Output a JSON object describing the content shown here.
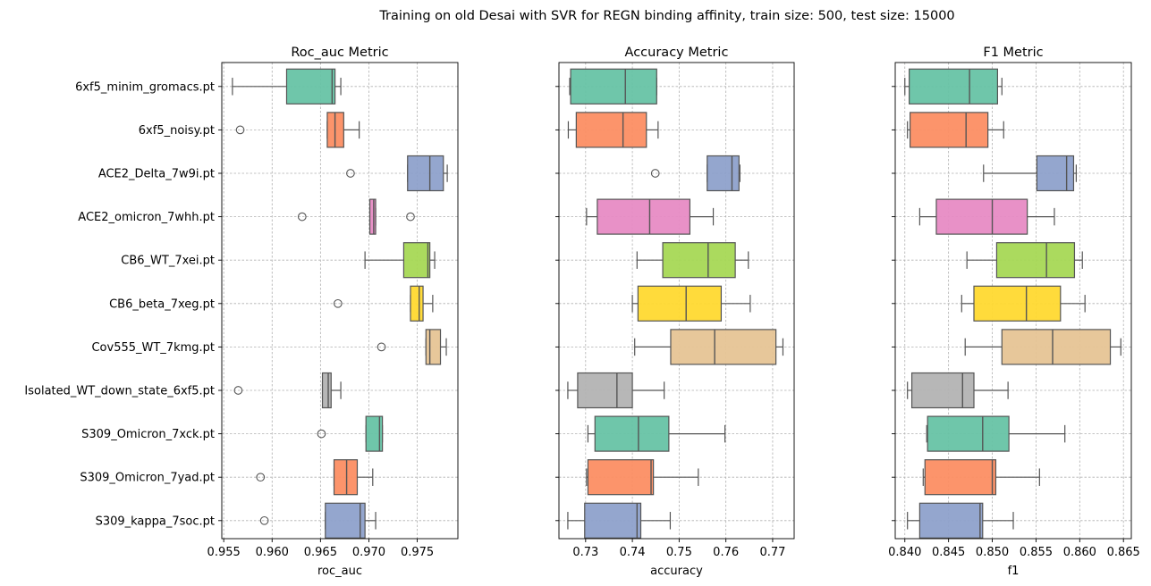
{
  "suptitle": "Training on old Desai with SVR for REGN binding affinity, train size: 500, test size: 15000",
  "chart_data": [
    {
      "type": "box",
      "title": "Roc_auc Metric",
      "xlabel": "roc_auc",
      "xlim": [
        0.9548,
        0.9792
      ],
      "xticks": [
        0.955,
        0.96,
        0.965,
        0.97,
        0.975
      ],
      "xtick_labels": [
        "0.955",
        "0.960",
        "0.965",
        "0.970",
        "0.975"
      ],
      "grid": true,
      "boxes": [
        {
          "label": "6xf5_minim_gromacs.pt",
          "whislo": 0.9559,
          "q1": 0.9615,
          "med": 0.9662,
          "q3": 0.9665,
          "whishi": 0.9671,
          "outliers": []
        },
        {
          "label": "6xf5_noisy.pt",
          "whislo": 0.9657,
          "q1": 0.9657,
          "med": 0.9665,
          "q3": 0.9674,
          "whishi": 0.969,
          "outliers": [
            0.9567
          ]
        },
        {
          "label": "ACE2_Delta_7w9i.pt",
          "whislo": 0.974,
          "q1": 0.974,
          "med": 0.9763,
          "q3": 0.9777,
          "whishi": 0.9781,
          "outliers": [
            0.9681
          ]
        },
        {
          "label": "ACE2_omicron_7whh.pt",
          "whislo": 0.9701,
          "q1": 0.9701,
          "med": 0.9705,
          "q3": 0.9707,
          "whishi": 0.9707,
          "outliers": [
            0.9631,
            0.9743
          ]
        },
        {
          "label": "CB6_WT_7xei.pt",
          "whislo": 0.9696,
          "q1": 0.9736,
          "med": 0.9761,
          "q3": 0.9763,
          "whishi": 0.9768,
          "outliers": []
        },
        {
          "label": "CB6_beta_7xeg.pt",
          "whislo": 0.9743,
          "q1": 0.9743,
          "med": 0.9752,
          "q3": 0.9756,
          "whishi": 0.9766,
          "outliers": [
            0.9668
          ]
        },
        {
          "label": "Cov555_WT_7kmg.pt",
          "whislo": 0.9759,
          "q1": 0.9759,
          "med": 0.9763,
          "q3": 0.9774,
          "whishi": 0.978,
          "outliers": [
            0.9713
          ]
        },
        {
          "label": "Isolated_WT_down_state_6xf5.pt",
          "whislo": 0.9652,
          "q1": 0.9652,
          "med": 0.9658,
          "q3": 0.9661,
          "whishi": 0.9671,
          "outliers": [
            0.9565
          ]
        },
        {
          "label": "S309_Omicron_7xck.pt",
          "whislo": 0.9697,
          "q1": 0.9697,
          "med": 0.9711,
          "q3": 0.9714,
          "whishi": 0.9714,
          "outliers": [
            0.9651
          ]
        },
        {
          "label": "S309_Omicron_7yad.pt",
          "whislo": 0.9664,
          "q1": 0.9664,
          "med": 0.9677,
          "q3": 0.9688,
          "whishi": 0.9704,
          "outliers": [
            0.9588
          ]
        },
        {
          "label": "S309_kappa_7soc.pt",
          "whislo": 0.9655,
          "q1": 0.9655,
          "med": 0.9691,
          "q3": 0.9696,
          "whishi": 0.9707,
          "outliers": [
            0.9592
          ]
        }
      ]
    },
    {
      "type": "box",
      "title": "Accuracy Metric",
      "xlabel": "accuracy",
      "xlim": [
        0.7243,
        0.7746
      ],
      "xticks": [
        0.73,
        0.74,
        0.75,
        0.76,
        0.77
      ],
      "xtick_labels": [
        "0.73",
        "0.74",
        "0.75",
        "0.76",
        "0.77"
      ],
      "grid": true,
      "boxes": [
        {
          "label": "6xf5_minim_gromacs.pt",
          "whislo": 0.7266,
          "q1": 0.7268,
          "med": 0.7385,
          "q3": 0.7452,
          "whishi": 0.7452,
          "outliers": []
        },
        {
          "label": "6xf5_noisy.pt",
          "whislo": 0.7263,
          "q1": 0.728,
          "med": 0.738,
          "q3": 0.743,
          "whishi": 0.7455,
          "outliers": []
        },
        {
          "label": "ACE2_Delta_7w9i.pt",
          "whislo": 0.756,
          "q1": 0.756,
          "med": 0.7613,
          "q3": 0.7628,
          "whishi": 0.763,
          "outliers": [
            0.7449
          ]
        },
        {
          "label": "ACE2_omicron_7whh.pt",
          "whislo": 0.7302,
          "q1": 0.7325,
          "med": 0.7437,
          "q3": 0.7523,
          "whishi": 0.7573,
          "outliers": []
        },
        {
          "label": "CB6_WT_7xei.pt",
          "whislo": 0.741,
          "q1": 0.7465,
          "med": 0.7562,
          "q3": 0.762,
          "whishi": 0.7648,
          "outliers": []
        },
        {
          "label": "CB6_beta_7xeg.pt",
          "whislo": 0.74,
          "q1": 0.7412,
          "med": 0.7515,
          "q3": 0.759,
          "whishi": 0.7652,
          "outliers": []
        },
        {
          "label": "Cov555_WT_7kmg.pt",
          "whislo": 0.7405,
          "q1": 0.7482,
          "med": 0.7576,
          "q3": 0.7707,
          "whishi": 0.7722,
          "outliers": []
        },
        {
          "label": "Isolated_WT_down_state_6xf5.pt",
          "whislo": 0.7262,
          "q1": 0.7283,
          "med": 0.7367,
          "q3": 0.74,
          "whishi": 0.7468,
          "outliers": []
        },
        {
          "label": "S309_Omicron_7xck.pt",
          "whislo": 0.7305,
          "q1": 0.732,
          "med": 0.7413,
          "q3": 0.7478,
          "whishi": 0.7598,
          "outliers": []
        },
        {
          "label": "S309_Omicron_7yad.pt",
          "whislo": 0.7302,
          "q1": 0.7305,
          "med": 0.744,
          "q3": 0.7445,
          "whishi": 0.7541,
          "outliers": []
        },
        {
          "label": "S309_kappa_7soc.pt",
          "whislo": 0.7262,
          "q1": 0.7298,
          "med": 0.741,
          "q3": 0.7418,
          "whishi": 0.7481,
          "outliers": []
        }
      ]
    },
    {
      "type": "box",
      "title": "F1 Metric",
      "xlabel": "f1",
      "xlim": [
        0.8389,
        0.8659
      ],
      "xticks": [
        0.84,
        0.845,
        0.85,
        0.855,
        0.86,
        0.865
      ],
      "xtick_labels": [
        "0.840",
        "0.845",
        "0.850",
        "0.855",
        "0.860",
        "0.865"
      ],
      "grid": true,
      "boxes": [
        {
          "label": "6xf5_minim_gromacs.pt",
          "whislo": 0.84,
          "q1": 0.8405,
          "med": 0.8474,
          "q3": 0.8506,
          "whishi": 0.8511,
          "outliers": []
        },
        {
          "label": "6xf5_noisy.pt",
          "whislo": 0.8403,
          "q1": 0.8406,
          "med": 0.847,
          "q3": 0.8495,
          "whishi": 0.8513,
          "outliers": []
        },
        {
          "label": "ACE2_Delta_7w9i.pt",
          "whislo": 0.849,
          "q1": 0.8551,
          "med": 0.8585,
          "q3": 0.8593,
          "whishi": 0.8596,
          "outliers": []
        },
        {
          "label": "ACE2_omicron_7whh.pt",
          "whislo": 0.8417,
          "q1": 0.8436,
          "med": 0.85,
          "q3": 0.854,
          "whishi": 0.8571,
          "outliers": []
        },
        {
          "label": "CB6_WT_7xei.pt",
          "whislo": 0.8471,
          "q1": 0.8505,
          "med": 0.8562,
          "q3": 0.8594,
          "whishi": 0.8603,
          "outliers": []
        },
        {
          "label": "CB6_beta_7xeg.pt",
          "whislo": 0.8465,
          "q1": 0.8479,
          "med": 0.8539,
          "q3": 0.8578,
          "whishi": 0.8606,
          "outliers": []
        },
        {
          "label": "Cov555_WT_7kmg.pt",
          "whislo": 0.8469,
          "q1": 0.8511,
          "med": 0.8569,
          "q3": 0.8635,
          "whishi": 0.8647,
          "outliers": []
        },
        {
          "label": "Isolated_WT_down_state_6xf5.pt",
          "whislo": 0.8403,
          "q1": 0.8408,
          "med": 0.8466,
          "q3": 0.8479,
          "whishi": 0.8518,
          "outliers": []
        },
        {
          "label": "S309_Omicron_7xck.pt",
          "whislo": 0.8425,
          "q1": 0.8426,
          "med": 0.8489,
          "q3": 0.8519,
          "whishi": 0.8583,
          "outliers": []
        },
        {
          "label": "S309_Omicron_7yad.pt",
          "whislo": 0.8421,
          "q1": 0.8423,
          "med": 0.85,
          "q3": 0.8504,
          "whishi": 0.8554,
          "outliers": []
        },
        {
          "label": "S309_kappa_7soc.pt",
          "whislo": 0.8403,
          "q1": 0.8417,
          "med": 0.8486,
          "q3": 0.8489,
          "whishi": 0.8524,
          "outliers": []
        }
      ]
    }
  ],
  "palette": [
    "#66c2a5",
    "#fc8d62",
    "#8da0cb",
    "#e78ac3",
    "#a6d854",
    "#ffd92f",
    "#e5c494",
    "#b3b3b3"
  ],
  "box_alpha": 0.94,
  "line_color": "#555555",
  "grid_color": "#b0b0b0"
}
